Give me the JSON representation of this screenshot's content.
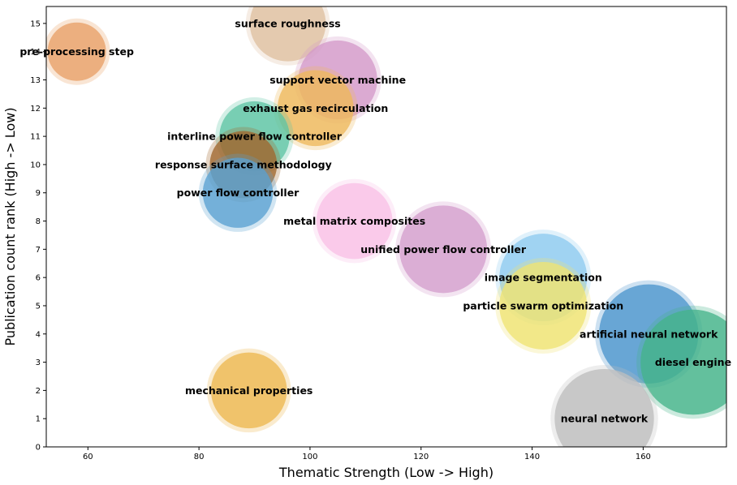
{
  "chart_data": {
    "type": "scatter",
    "xlabel": "Thematic Strength (Low -> High)",
    "ylabel": "Publication count rank (High -> Low)",
    "xlim": [
      52.5,
      175
    ],
    "ylim": [
      0,
      15.6
    ],
    "xticks": [
      60,
      80,
      100,
      120,
      140,
      160
    ],
    "yticks": [
      0,
      1,
      2,
      3,
      4,
      5,
      6,
      7,
      8,
      9,
      10,
      11,
      12,
      13,
      14,
      15
    ],
    "grid": false,
    "legend": "none",
    "points": [
      {
        "label": "pre-processing step",
        "x": 58,
        "y": 14,
        "size": 1.0,
        "color": "#e8a066"
      },
      {
        "label": "surface roughness",
        "x": 96,
        "y": 15,
        "size": 1.3,
        "color": "#dfc0a0"
      },
      {
        "label": "support vector machine",
        "x": 105,
        "y": 13,
        "size": 1.35,
        "color": "#d39ac9"
      },
      {
        "label": "exhaust gas recirculation",
        "x": 101,
        "y": 12,
        "size": 1.3,
        "color": "#eeb95c"
      },
      {
        "label": "interline power flow controller",
        "x": 90,
        "y": 11,
        "size": 1.2,
        "color": "#5fc4a4"
      },
      {
        "label": "response surface methodology",
        "x": 88,
        "y": 10,
        "size": 1.15,
        "color": "#a0672e"
      },
      {
        "label": "power flow controller",
        "x": 87,
        "y": 9,
        "size": 1.2,
        "color": "#5aa2d2"
      },
      {
        "label": "metal matrix composites",
        "x": 108,
        "y": 8,
        "size": 1.3,
        "color": "#f8c0e5"
      },
      {
        "label": "unified power flow controller",
        "x": 124,
        "y": 7,
        "size": 1.5,
        "color": "#d49fcd"
      },
      {
        "label": "image segmentation",
        "x": 142,
        "y": 6,
        "size": 1.5,
        "color": "#8ecbef"
      },
      {
        "label": "particle swarm optimization",
        "x": 142,
        "y": 5,
        "size": 1.5,
        "color": "#efe472"
      },
      {
        "label": "artificial neural network",
        "x": 161,
        "y": 4,
        "size": 1.7,
        "color": "#4b95cd"
      },
      {
        "label": "diesel engine",
        "x": 169,
        "y": 3,
        "size": 1.8,
        "color": "#45b48a"
      },
      {
        "label": "mechanical properties",
        "x": 89,
        "y": 2,
        "size": 1.3,
        "color": "#edb750"
      },
      {
        "label": "neural network",
        "x": 153,
        "y": 1,
        "size": 1.7,
        "color": "#bebebe"
      }
    ]
  }
}
